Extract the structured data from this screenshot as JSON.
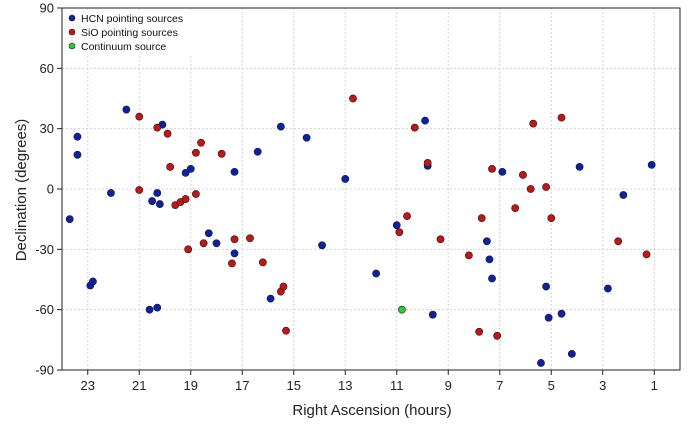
{
  "chart_data": {
    "type": "scatter",
    "xlabel": "Right Ascension (hours)",
    "ylabel": "Declination (degrees)",
    "xlim": [
      24,
      0
    ],
    "ylim": [
      -90,
      90
    ],
    "x_reversed": true,
    "xticks": [
      23,
      21,
      19,
      17,
      15,
      13,
      11,
      9,
      7,
      5,
      3,
      1
    ],
    "yticks": [
      90,
      60,
      30,
      0,
      -30,
      -60,
      -90
    ],
    "grid": true,
    "legend_position": "top-left",
    "series": [
      {
        "name": "HCN pointing sources",
        "color": "#0b22a8",
        "points": [
          [
            23.7,
            -15
          ],
          [
            23.4,
            26
          ],
          [
            23.4,
            17
          ],
          [
            22.9,
            -48
          ],
          [
            22.8,
            -46
          ],
          [
            22.1,
            -2
          ],
          [
            21.5,
            39.5
          ],
          [
            20.5,
            -6
          ],
          [
            20.3,
            -2
          ],
          [
            20.2,
            -7.5
          ],
          [
            20.1,
            32
          ],
          [
            19.2,
            8
          ],
          [
            19.0,
            10
          ],
          [
            18.3,
            -22
          ],
          [
            18.0,
            -27
          ],
          [
            17.3,
            8.5
          ],
          [
            17.3,
            -32
          ],
          [
            16.4,
            18.5
          ],
          [
            15.9,
            -54.5
          ],
          [
            15.5,
            31
          ],
          [
            14.5,
            25.5
          ],
          [
            13.9,
            -28
          ],
          [
            13.0,
            5
          ],
          [
            11.8,
            -42
          ],
          [
            11.0,
            -18
          ],
          [
            9.9,
            34
          ],
          [
            9.8,
            11.5
          ],
          [
            9.6,
            -62.5
          ],
          [
            7.5,
            -26
          ],
          [
            7.4,
            -35
          ],
          [
            7.3,
            -44.5
          ],
          [
            6.9,
            8.5
          ],
          [
            5.4,
            -86.5
          ],
          [
            5.2,
            -48.5
          ],
          [
            5.1,
            -64
          ],
          [
            4.6,
            -62
          ],
          [
            4.2,
            -82
          ],
          [
            3.9,
            11
          ],
          [
            2.8,
            -49.5
          ],
          [
            2.2,
            -3
          ],
          [
            1.1,
            12
          ],
          [
            20.6,
            -60
          ],
          [
            20.3,
            -59
          ]
        ]
      },
      {
        "name": "SiO pointing sources",
        "color": "#c41414",
        "points": [
          [
            21.0,
            36
          ],
          [
            21.0,
            -0.5
          ],
          [
            20.3,
            30.5
          ],
          [
            19.9,
            27.5
          ],
          [
            19.8,
            11
          ],
          [
            19.6,
            -8
          ],
          [
            19.4,
            -6.5
          ],
          [
            19.2,
            -5
          ],
          [
            19.1,
            -30
          ],
          [
            18.8,
            18
          ],
          [
            18.8,
            -2.5
          ],
          [
            18.6,
            23
          ],
          [
            18.5,
            -27
          ],
          [
            17.8,
            17.5
          ],
          [
            17.4,
            -37
          ],
          [
            17.3,
            -25
          ],
          [
            16.7,
            -24.5
          ],
          [
            16.2,
            -36.5
          ],
          [
            15.5,
            -51
          ],
          [
            15.4,
            -48.5
          ],
          [
            15.3,
            -70.5
          ],
          [
            12.7,
            45
          ],
          [
            10.9,
            -21.5
          ],
          [
            10.6,
            -13.5
          ],
          [
            10.3,
            30.5
          ],
          [
            9.8,
            13
          ],
          [
            9.3,
            -25
          ],
          [
            8.2,
            -33
          ],
          [
            7.7,
            -14.5
          ],
          [
            7.8,
            -71
          ],
          [
            7.3,
            10
          ],
          [
            7.1,
            -73
          ],
          [
            6.4,
            -9.5
          ],
          [
            6.1,
            7
          ],
          [
            5.8,
            0
          ],
          [
            5.7,
            32.5
          ],
          [
            5.2,
            1
          ],
          [
            5.0,
            -14.5
          ],
          [
            4.6,
            35.5
          ],
          [
            2.4,
            -26
          ],
          [
            1.3,
            -32.5
          ]
        ]
      },
      {
        "name": "Continuum source",
        "color": "#2ecc2e",
        "points": [
          [
            10.8,
            -60
          ]
        ]
      }
    ]
  }
}
